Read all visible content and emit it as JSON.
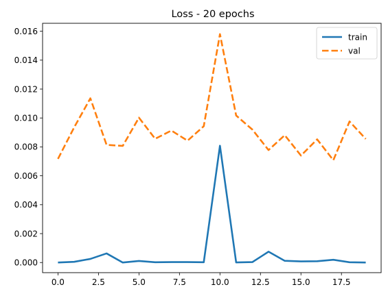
{
  "chart_data": {
    "type": "line",
    "title": "Loss - 20 epochs",
    "xlabel": "",
    "ylabel": "",
    "xlim": [
      -0.95,
      19.95
    ],
    "ylim": [
      -0.0007,
      0.01655
    ],
    "xticks": [
      0.0,
      2.5,
      5.0,
      7.5,
      10.0,
      12.5,
      15.0,
      17.5
    ],
    "xtick_labels": [
      "0.0",
      "2.5",
      "5.0",
      "7.5",
      "10.0",
      "12.5",
      "15.0",
      "17.5"
    ],
    "yticks": [
      0.0,
      0.002,
      0.004,
      0.006,
      0.008,
      0.01,
      0.012,
      0.014,
      0.016
    ],
    "ytick_labels": [
      "0.000",
      "0.002",
      "0.004",
      "0.006",
      "0.008",
      "0.010",
      "0.012",
      "0.014",
      "0.016"
    ],
    "grid": false,
    "legend_position": "top-right",
    "x": [
      0,
      1,
      2,
      3,
      4,
      5,
      6,
      7,
      8,
      9,
      10,
      11,
      12,
      13,
      14,
      15,
      16,
      17,
      18,
      19
    ],
    "series": [
      {
        "name": "train",
        "color": "#1f77b4",
        "style": "solid",
        "values": [
          0.0,
          5e-05,
          0.00025,
          0.00063,
          0.0,
          0.00011,
          2e-05,
          3e-05,
          3e-05,
          2e-05,
          0.00808,
          1e-05,
          3e-05,
          0.00075,
          0.00012,
          8e-05,
          9e-05,
          0.00019,
          2e-05,
          0.0
        ]
      },
      {
        "name": "val",
        "color": "#ff7f0e",
        "style": "dashed",
        "values": [
          0.00717,
          0.00935,
          0.01136,
          0.00814,
          0.00807,
          0.01002,
          0.00856,
          0.00913,
          0.00843,
          0.00943,
          0.0158,
          0.01017,
          0.0092,
          0.00778,
          0.00881,
          0.0074,
          0.00852,
          0.00708,
          0.00976,
          0.00855
        ]
      }
    ]
  }
}
